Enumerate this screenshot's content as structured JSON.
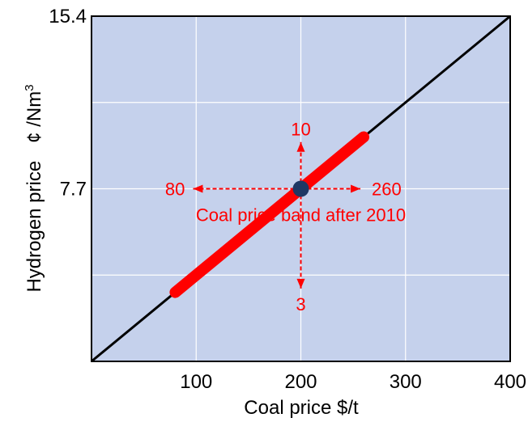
{
  "chart_data": {
    "type": "line",
    "title": "",
    "xlabel": "Coal price $/t",
    "ylabel_main": "Hydrogen price",
    "ylabel_unit": "¢ /Nm",
    "ylabel_unit_sup": "3",
    "xlim": [
      0,
      400
    ],
    "ylim": [
      0,
      15.4
    ],
    "x_ticks": [
      100,
      200,
      300,
      400
    ],
    "x_tick_labels": [
      "100",
      "200",
      "300",
      "400"
    ],
    "y_ticks": [
      7.7,
      15.4
    ],
    "y_tick_labels": [
      "7.7",
      "15.4"
    ],
    "grid": true,
    "series": [
      {
        "x": [
          0,
          400
        ],
        "y": [
          0,
          15.4
        ],
        "color": "#000000"
      },
      {
        "x": [
          80,
          260
        ],
        "y": [
          3.08,
          10.01
        ],
        "color": "#ff0000"
      }
    ],
    "point": {
      "x": 200,
      "y": 7.7,
      "color": "#1f3864"
    },
    "annotations": {
      "left": {
        "text": "80",
        "x": 80
      },
      "right": {
        "text": "260",
        "x": 260
      },
      "up": {
        "text": "10",
        "y": 10
      },
      "down": {
        "text": "3",
        "y": 3
      },
      "band_label": "Coal price band after 2010"
    },
    "plot_background": "#c5d1ec",
    "annotation_color": "#ff0000"
  }
}
